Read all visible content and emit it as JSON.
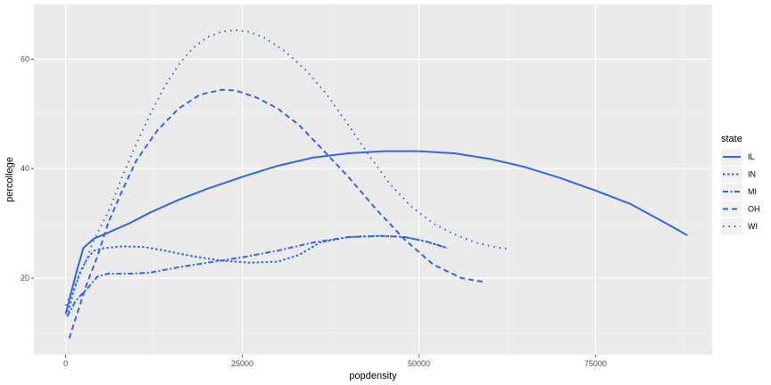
{
  "chart_data": {
    "type": "line",
    "title": "",
    "xlabel": "popdensity",
    "ylabel": "percollege",
    "xlim": [
      -4500,
      91500
    ],
    "ylim": [
      6,
      70
    ],
    "x_ticks": [
      0,
      25000,
      50000,
      75000
    ],
    "x_tick_labels": [
      "0",
      "25000",
      "50000",
      "75000"
    ],
    "y_ticks": [
      20,
      40,
      60
    ],
    "y_tick_labels": [
      "20",
      "40",
      "60"
    ],
    "grid": true,
    "legend": {
      "title": "state",
      "placement": "right"
    },
    "line_color": "#3366e6",
    "series": [
      {
        "name": "IL",
        "dash": "solid",
        "points": [
          [
            0,
            13.5
          ],
          [
            500,
            16
          ],
          [
            1500,
            21
          ],
          [
            2500,
            25.5
          ],
          [
            4000,
            27.2
          ],
          [
            6000,
            28.3
          ],
          [
            9000,
            30
          ],
          [
            12000,
            32
          ],
          [
            16000,
            34.3
          ],
          [
            20000,
            36.3
          ],
          [
            25000,
            38.5
          ],
          [
            30000,
            40.5
          ],
          [
            35000,
            42
          ],
          [
            40000,
            42.8
          ],
          [
            45000,
            43.2
          ],
          [
            50000,
            43.2
          ],
          [
            55000,
            42.8
          ],
          [
            60000,
            41.8
          ],
          [
            65000,
            40.3
          ],
          [
            70000,
            38.3
          ],
          [
            75000,
            36
          ],
          [
            80000,
            33.5
          ],
          [
            85000,
            30
          ],
          [
            88000,
            27.8
          ]
        ]
      },
      {
        "name": "IN",
        "dash": "dotted-short",
        "points": [
          [
            200,
            13
          ],
          [
            1000,
            17
          ],
          [
            2000,
            21
          ],
          [
            3000,
            23.5
          ],
          [
            4000,
            25
          ],
          [
            5500,
            25.5
          ],
          [
            8000,
            25.8
          ],
          [
            11000,
            25.7
          ],
          [
            14000,
            25
          ],
          [
            18000,
            24
          ],
          [
            22000,
            23.2
          ],
          [
            26000,
            22.8
          ],
          [
            30000,
            23
          ],
          [
            33000,
            24.2
          ],
          [
            36000,
            26.5
          ],
          [
            40000,
            27.5
          ],
          [
            44000,
            27.7
          ],
          [
            48000,
            27.5
          ],
          [
            51000,
            26.7
          ],
          [
            54000,
            25.5
          ]
        ]
      },
      {
        "name": "MI",
        "dash": "dashdot",
        "points": [
          [
            200,
            13
          ],
          [
            1500,
            16
          ],
          [
            3000,
            18
          ],
          [
            4500,
            20.3
          ],
          [
            6000,
            20.8
          ],
          [
            9000,
            20.8
          ],
          [
            12000,
            21
          ],
          [
            16000,
            22
          ],
          [
            20000,
            22.8
          ],
          [
            25000,
            23.8
          ],
          [
            30000,
            25
          ],
          [
            35000,
            26.5
          ],
          [
            40000,
            27.5
          ],
          [
            45000,
            27.7
          ],
          [
            48000,
            27.5
          ],
          [
            51000,
            26.7
          ],
          [
            54000,
            25.5
          ]
        ]
      },
      {
        "name": "OH",
        "dash": "dashed",
        "points": [
          [
            500,
            9
          ],
          [
            1500,
            13
          ],
          [
            3000,
            19
          ],
          [
            4500,
            24
          ],
          [
            6000,
            30
          ],
          [
            8000,
            36
          ],
          [
            10000,
            41.5
          ],
          [
            13000,
            47
          ],
          [
            16000,
            51
          ],
          [
            19000,
            53.5
          ],
          [
            22000,
            54.4
          ],
          [
            24000,
            54.3
          ],
          [
            27000,
            53
          ],
          [
            30000,
            51
          ],
          [
            33000,
            48
          ],
          [
            36000,
            44
          ],
          [
            40000,
            38.5
          ],
          [
            44000,
            32.5
          ],
          [
            48000,
            27
          ],
          [
            52000,
            22.5
          ],
          [
            56000,
            20
          ],
          [
            59500,
            19.2
          ]
        ]
      },
      {
        "name": "WI",
        "dash": "dotted",
        "points": [
          [
            0,
            15
          ],
          [
            1000,
            18
          ],
          [
            2500,
            22
          ],
          [
            4000,
            27
          ],
          [
            6000,
            32
          ],
          [
            8000,
            38.5
          ],
          [
            10000,
            44.5
          ],
          [
            12000,
            50
          ],
          [
            14000,
            55
          ],
          [
            16000,
            59
          ],
          [
            18000,
            62
          ],
          [
            20000,
            64
          ],
          [
            22000,
            65
          ],
          [
            24000,
            65.3
          ],
          [
            26000,
            65
          ],
          [
            28000,
            64
          ],
          [
            31000,
            61.5
          ],
          [
            34000,
            58
          ],
          [
            37000,
            53.5
          ],
          [
            40000,
            48
          ],
          [
            43000,
            42.3
          ],
          [
            46000,
            37
          ],
          [
            49000,
            33
          ],
          [
            52000,
            30
          ],
          [
            55000,
            28
          ],
          [
            58000,
            26.5
          ],
          [
            61000,
            25.6
          ],
          [
            63000,
            25.3
          ]
        ]
      }
    ]
  }
}
